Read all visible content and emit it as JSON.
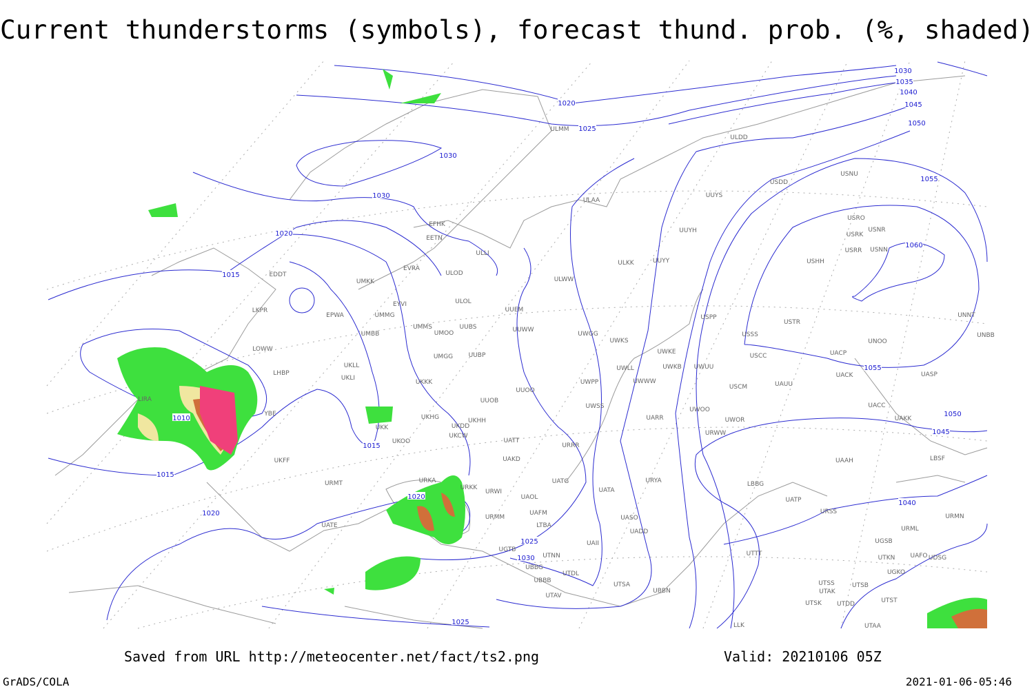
{
  "title": "Current thunderstorms (symbols), forecast thund. prob. (%, shaded)",
  "footer": {
    "source": "Saved from URL http://meteocenter.net/fact/ts2.png",
    "valid": "Valid: 20210106 05Z",
    "software": "GrADS/COLA",
    "timestamp": "2021-01-06-05:46"
  },
  "isobar_labels": [
    "1030",
    "1035",
    "1040",
    "1045",
    "1050",
    "1020",
    "1025",
    "1030",
    "1030",
    "1020",
    "1015",
    "1010",
    "1015",
    "1015",
    "1020",
    "1020",
    "1025",
    "1030",
    "1025",
    "1055",
    "1060",
    "1055",
    "1050",
    "1045",
    "1040"
  ],
  "stations": [
    "ULMM",
    "ULDD",
    "USDD",
    "USNU",
    "UUYS",
    "ULAA",
    "EFHK",
    "EETN",
    "USRO",
    "USRK",
    "USNR",
    "USRR",
    "USNN",
    "UUYH",
    "ULLI",
    "USHH",
    "ULKK",
    "UUYY",
    "EVRA",
    "ULOD",
    "UMKK",
    "EDDT",
    "ULWW",
    "EYVI",
    "ULOL",
    "UUEM",
    "LKPR",
    "EPWA",
    "UMMG",
    "UMMS",
    "UUBS",
    "UUWW",
    "USPP",
    "USTR",
    "UNNT",
    "UMOO",
    "UWGG",
    "USSS",
    "UNOO",
    "UNBB",
    "UMGG",
    "UUBP",
    "UWKS",
    "UWKE",
    "UMBB",
    "LOWW",
    "USCC",
    "UACP",
    "UKLL",
    "LHBP",
    "UKLI",
    "UWLL",
    "UWKB",
    "UWUU",
    "UACK",
    "UASP",
    "UKKK",
    "UWPP",
    "UWWW",
    "USCM",
    "UAUU",
    "UUOO",
    "LIRA",
    "UUOB",
    "UWSS",
    "UACC",
    "YBE",
    "UKHG",
    "UKHH",
    "UARR",
    "UWOO",
    "UWOR",
    "UAKK",
    "UKDD",
    "UKK",
    "UKOO",
    "UKCW",
    "UATT",
    "URWW",
    "URRR",
    "UAKD",
    "UAAH",
    "LBSF",
    "UKFF",
    "URKA",
    "URKK",
    "URWI",
    "UATG",
    "URYA",
    "UATA",
    "LBBG",
    "URMT",
    "UAOL",
    "UATP",
    "UASO",
    "URSS",
    "URMM",
    "UAFM",
    "URMN",
    "LTBA",
    "UATE",
    "UADD",
    "URML",
    "UAII",
    "UGSB",
    "UGTB",
    "UTNN",
    "UTTT",
    "UTKN",
    "UAFO",
    "UDSG",
    "UBBG",
    "UTDL",
    "UGKO",
    "UBBB",
    "UTSA",
    "UTSS",
    "UTSB",
    "UTAK",
    "UBBN",
    "UTAV",
    "UTSK",
    "UTDD",
    "UTST",
    "UTAA",
    "LLK"
  ]
}
